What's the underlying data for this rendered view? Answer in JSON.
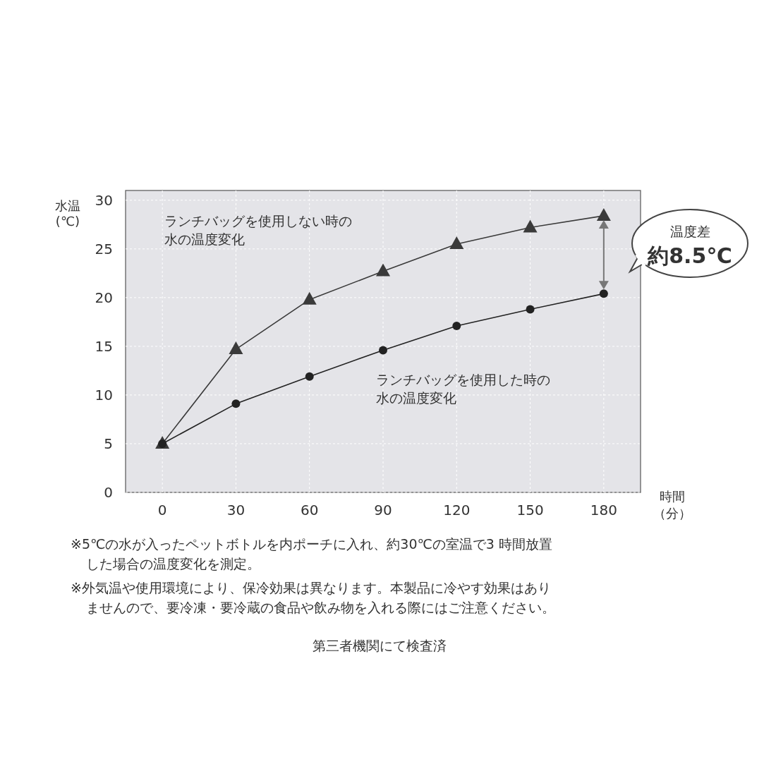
{
  "chart_data": {
    "type": "line",
    "xlabel": "時間（分）",
    "ylabel": "水温(℃)",
    "x": [
      0,
      30,
      60,
      90,
      120,
      150,
      180
    ],
    "series": [
      {
        "name": "ランチバッグを使用しない時の水の温度変化",
        "color": "#3a3a3a",
        "marker": "triangle",
        "values": [
          5,
          14.7,
          19.8,
          22.7,
          25.5,
          27.2,
          28.4
        ]
      },
      {
        "name": "ランチバッグを使用した時の水の温度変化",
        "color": "#222222",
        "marker": "circle",
        "values": [
          5,
          9.1,
          11.9,
          14.6,
          17.1,
          18.8,
          20.4
        ]
      }
    ],
    "xlim": [
      -15,
      195
    ],
    "ylim": [
      0,
      31
    ],
    "xticks": [
      0,
      30,
      60,
      90,
      120,
      150,
      180
    ],
    "yticks": [
      0,
      5,
      10,
      15,
      20,
      25,
      30
    ],
    "grid": true,
    "line_style": "solid",
    "annotations": [
      "温度差",
      "約8.5℃",
      "※5℃の水が入ったペットボトルを内ポーチに入れ、約30℃の室温で3 時間放置した場合の温度変化を測定。",
      "※外気温や使用環境により、保冷効果は異なります。本製品に冷やす効果はありませんので、要冷凍・要冷蔵の食品や飲み物を入れる際にはご注意ください。",
      "第三者機関にて検査済"
    ]
  }
}
